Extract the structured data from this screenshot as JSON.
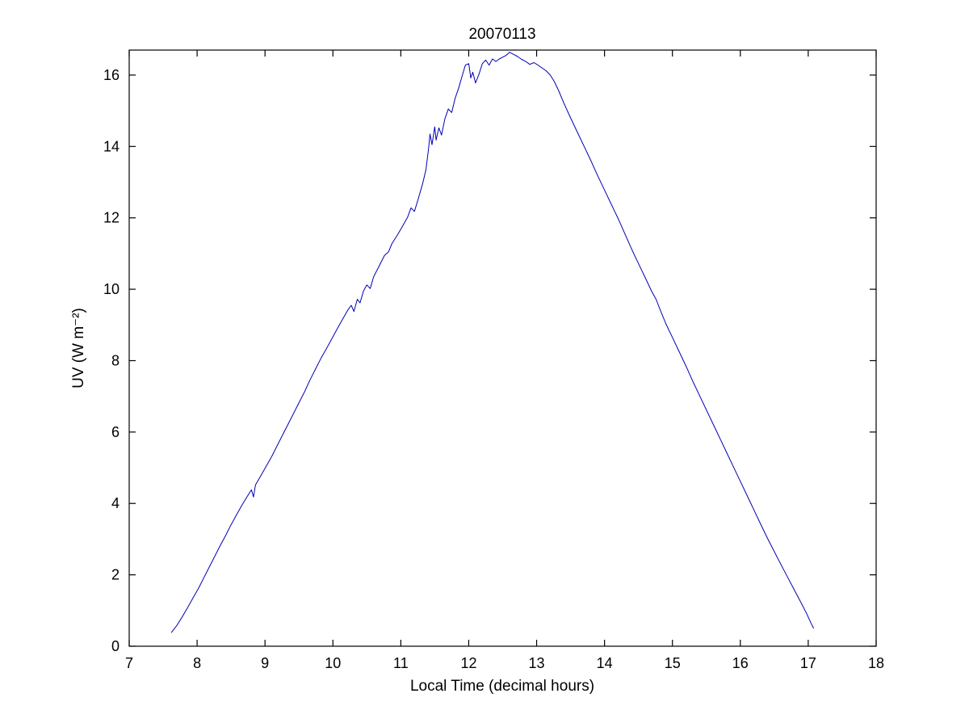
{
  "figure": {
    "background": "#ffffff",
    "axis_color": "#000000"
  },
  "chart_data": {
    "type": "line",
    "title": "20070113",
    "xlabel": "Local Time (decimal hours)",
    "ylabel": "UV (W m⁻²)",
    "xlim": [
      7,
      18
    ],
    "ylim": [
      0,
      16.7
    ],
    "xticks": [
      7,
      8,
      9,
      10,
      11,
      12,
      13,
      14,
      15,
      16,
      17,
      18
    ],
    "yticks": [
      0,
      2,
      4,
      6,
      8,
      10,
      12,
      14,
      16
    ],
    "grid": false,
    "legend_position": "none",
    "line_color": "#0000b4",
    "series": [
      {
        "name": "UV",
        "points": [
          [
            7.62,
            0.38
          ],
          [
            7.7,
            0.58
          ],
          [
            7.78,
            0.82
          ],
          [
            7.86,
            1.08
          ],
          [
            7.94,
            1.35
          ],
          [
            8.02,
            1.62
          ],
          [
            8.1,
            1.92
          ],
          [
            8.18,
            2.22
          ],
          [
            8.26,
            2.52
          ],
          [
            8.34,
            2.82
          ],
          [
            8.42,
            3.1
          ],
          [
            8.5,
            3.4
          ],
          [
            8.58,
            3.68
          ],
          [
            8.66,
            3.95
          ],
          [
            8.74,
            4.2
          ],
          [
            8.8,
            4.38
          ],
          [
            8.83,
            4.18
          ],
          [
            8.86,
            4.52
          ],
          [
            8.94,
            4.78
          ],
          [
            9.02,
            5.05
          ],
          [
            9.1,
            5.32
          ],
          [
            9.18,
            5.62
          ],
          [
            9.26,
            5.92
          ],
          [
            9.34,
            6.22
          ],
          [
            9.42,
            6.52
          ],
          [
            9.5,
            6.82
          ],
          [
            9.58,
            7.12
          ],
          [
            9.66,
            7.45
          ],
          [
            9.74,
            7.75
          ],
          [
            9.82,
            8.05
          ],
          [
            9.9,
            8.32
          ],
          [
            9.98,
            8.6
          ],
          [
            10.06,
            8.88
          ],
          [
            10.14,
            9.15
          ],
          [
            10.22,
            9.42
          ],
          [
            10.27,
            9.55
          ],
          [
            10.31,
            9.38
          ],
          [
            10.36,
            9.72
          ],
          [
            10.4,
            9.62
          ],
          [
            10.45,
            9.95
          ],
          [
            10.5,
            10.12
          ],
          [
            10.55,
            10.02
          ],
          [
            10.6,
            10.35
          ],
          [
            10.68,
            10.65
          ],
          [
            10.76,
            10.95
          ],
          [
            10.82,
            11.05
          ],
          [
            10.87,
            11.28
          ],
          [
            10.95,
            11.52
          ],
          [
            11.03,
            11.78
          ],
          [
            11.1,
            12.02
          ],
          [
            11.15,
            12.28
          ],
          [
            11.2,
            12.18
          ],
          [
            11.26,
            12.55
          ],
          [
            11.32,
            12.95
          ],
          [
            11.37,
            13.35
          ],
          [
            11.41,
            13.95
          ],
          [
            11.43,
            14.35
          ],
          [
            11.46,
            14.05
          ],
          [
            11.5,
            14.55
          ],
          [
            11.52,
            14.18
          ],
          [
            11.56,
            14.52
          ],
          [
            11.6,
            14.32
          ],
          [
            11.65,
            14.78
          ],
          [
            11.7,
            15.05
          ],
          [
            11.75,
            14.95
          ],
          [
            11.8,
            15.35
          ],
          [
            11.85,
            15.62
          ],
          [
            11.9,
            15.95
          ],
          [
            11.95,
            16.28
          ],
          [
            12.0,
            16.32
          ],
          [
            12.03,
            15.92
          ],
          [
            12.06,
            16.08
          ],
          [
            12.1,
            15.78
          ],
          [
            12.15,
            16.02
          ],
          [
            12.2,
            16.32
          ],
          [
            12.25,
            16.42
          ],
          [
            12.3,
            16.28
          ],
          [
            12.35,
            16.45
          ],
          [
            12.4,
            16.38
          ],
          [
            12.45,
            16.45
          ],
          [
            12.5,
            16.5
          ],
          [
            12.55,
            16.55
          ],
          [
            12.6,
            16.64
          ],
          [
            12.66,
            16.58
          ],
          [
            12.72,
            16.52
          ],
          [
            12.78,
            16.44
          ],
          [
            12.84,
            16.38
          ],
          [
            12.9,
            16.3
          ],
          [
            12.96,
            16.35
          ],
          [
            13.02,
            16.28
          ],
          [
            13.08,
            16.2
          ],
          [
            13.14,
            16.12
          ],
          [
            13.2,
            16.0
          ],
          [
            13.26,
            15.82
          ],
          [
            13.32,
            15.58
          ],
          [
            13.4,
            15.22
          ],
          [
            13.5,
            14.8
          ],
          [
            13.6,
            14.4
          ],
          [
            13.7,
            14.0
          ],
          [
            13.8,
            13.6
          ],
          [
            13.9,
            13.18
          ],
          [
            14.0,
            12.78
          ],
          [
            14.1,
            12.38
          ],
          [
            14.2,
            11.98
          ],
          [
            14.3,
            11.55
          ],
          [
            14.4,
            11.12
          ],
          [
            14.5,
            10.72
          ],
          [
            14.6,
            10.32
          ],
          [
            14.7,
            9.92
          ],
          [
            14.76,
            9.72
          ],
          [
            14.82,
            9.42
          ],
          [
            14.9,
            9.05
          ],
          [
            15.0,
            8.65
          ],
          [
            15.1,
            8.25
          ],
          [
            15.2,
            7.85
          ],
          [
            15.3,
            7.42
          ],
          [
            15.4,
            7.02
          ],
          [
            15.5,
            6.62
          ],
          [
            15.6,
            6.22
          ],
          [
            15.7,
            5.82
          ],
          [
            15.8,
            5.42
          ],
          [
            15.9,
            5.02
          ],
          [
            16.0,
            4.62
          ],
          [
            16.1,
            4.22
          ],
          [
            16.2,
            3.82
          ],
          [
            16.3,
            3.42
          ],
          [
            16.4,
            3.02
          ],
          [
            16.5,
            2.65
          ],
          [
            16.6,
            2.28
          ],
          [
            16.7,
            1.92
          ],
          [
            16.8,
            1.56
          ],
          [
            16.9,
            1.2
          ],
          [
            16.98,
            0.9
          ],
          [
            17.04,
            0.65
          ],
          [
            17.08,
            0.5
          ]
        ]
      }
    ]
  }
}
